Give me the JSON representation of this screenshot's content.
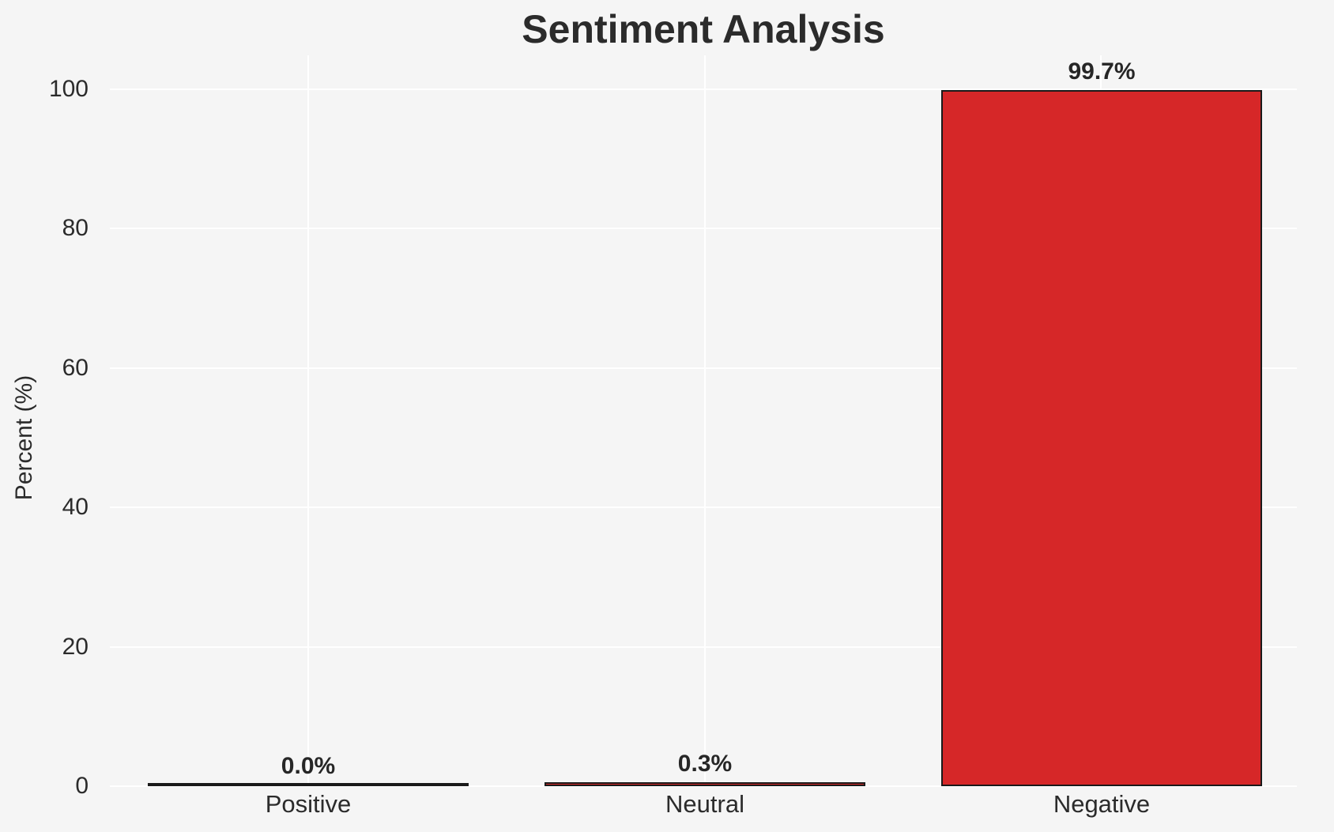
{
  "chart_data": {
    "type": "bar",
    "title": "Sentiment Analysis",
    "categories": [
      "Positive",
      "Neutral",
      "Negative"
    ],
    "values": [
      0.0,
      0.3,
      99.7
    ],
    "bar_labels": [
      "0.0%",
      "0.3%",
      "99.7%"
    ],
    "xlabel": "",
    "ylabel": "Percent (%)",
    "ylim": [
      0,
      104.7
    ],
    "yticks": [
      "0",
      "20",
      "40",
      "60",
      "80",
      "100"
    ],
    "grid": true,
    "legend": false,
    "bar_color": "#d62728",
    "bar_edge_color": "#1a1a1a",
    "background_color": "#f5f5f5",
    "gridline_color": "#ffffff"
  }
}
